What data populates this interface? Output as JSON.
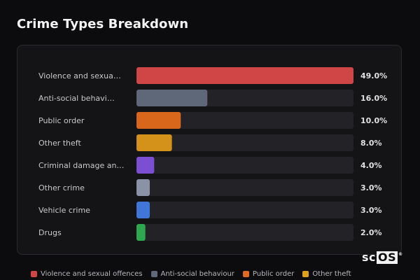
{
  "title": "Crime Types Breakdown",
  "chart_data": {
    "type": "bar",
    "orientation": "horizontal",
    "categories": [
      "Violence and sexua…",
      "Anti-social behavi…",
      "Public order",
      "Other theft",
      "Criminal damage an…",
      "Other crime",
      "Vehicle crime",
      "Drugs"
    ],
    "values": [
      49.0,
      16.0,
      10.0,
      8.0,
      4.0,
      3.0,
      3.0,
      2.0
    ],
    "value_labels": [
      "49.0%",
      "16.0%",
      "10.0%",
      "8.0%",
      "4.0%",
      "3.0%",
      "3.0%",
      "2.0%"
    ],
    "colors": [
      "#d04545",
      "#5e6878",
      "#d8671c",
      "#d4921a",
      "#7b4fd1",
      "#8a93a6",
      "#3f76d8",
      "#2ea84f"
    ],
    "xlim": [
      0,
      49.0
    ],
    "track_color": "#232327",
    "grid": false,
    "legend_position": "bottom"
  },
  "legend": [
    {
      "label": "Violence and sexual offences",
      "color": "#d04545"
    },
    {
      "label": "Anti-social behaviour",
      "color": "#5e6878"
    },
    {
      "label": "Public order",
      "color": "#e06a20"
    },
    {
      "label": "Other theft",
      "color": "#e0a01a"
    }
  ],
  "logo": {
    "prefix": "sc",
    "boxed": "OS",
    "mark": "®"
  }
}
